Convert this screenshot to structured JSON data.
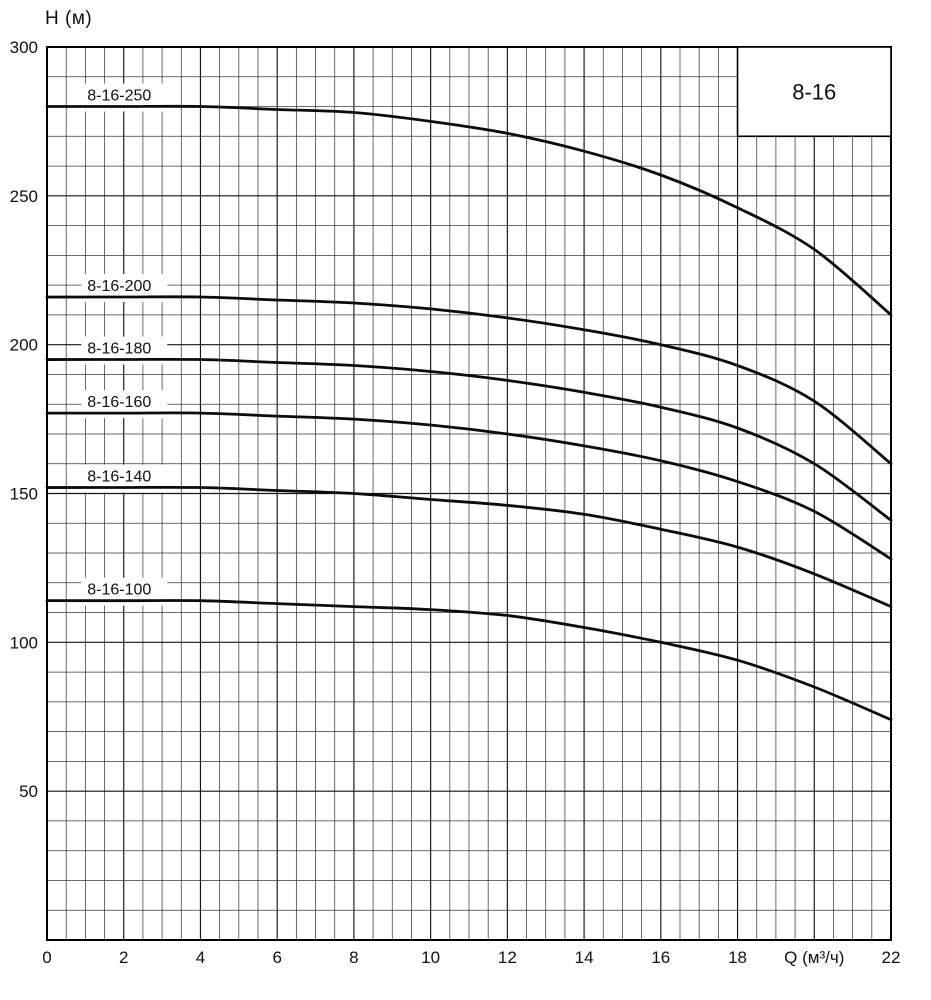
{
  "chart": {
    "y_axis_title": "H (м)",
    "x_axis_title": "Q (м³/ч)",
    "family_label": "8-16"
  },
  "chart_data": {
    "type": "line",
    "title": "8-16",
    "xlabel": "Q (м³/ч)",
    "ylabel": "H (м)",
    "xlim": [
      0,
      22
    ],
    "ylim": [
      0,
      300
    ],
    "x_minor_step": 0.5,
    "x_major_step": 2,
    "y_minor_step": 10,
    "y_major_step": 50,
    "grid": true,
    "legend_position": "top-right",
    "curve_color": "#0b0b0b",
    "x": [
      0,
      2,
      4,
      6,
      8,
      10,
      12,
      14,
      16,
      18,
      20,
      22
    ],
    "series": [
      {
        "name": "8-16-250",
        "values": [
          280,
          280,
          280,
          279,
          278,
          275,
          271,
          265,
          257,
          246,
          232,
          210
        ]
      },
      {
        "name": "8-16-200",
        "values": [
          216,
          216,
          216,
          215,
          214,
          212,
          209,
          205,
          200,
          193,
          181,
          160
        ]
      },
      {
        "name": "8-16-180",
        "values": [
          195,
          195,
          195,
          194,
          193,
          191,
          188,
          184,
          179,
          172,
          160,
          141
        ]
      },
      {
        "name": "8-16-160",
        "values": [
          177,
          177,
          177,
          176,
          175,
          173,
          170,
          166,
          161,
          154,
          144,
          128
        ]
      },
      {
        "name": "8-16-140",
        "values": [
          152,
          152,
          152,
          151,
          150,
          148,
          146,
          143,
          138,
          132,
          123,
          112
        ]
      },
      {
        "name": "8-16-100",
        "values": [
          114,
          114,
          114,
          113,
          112,
          111,
          109,
          105,
          100,
          94,
          85,
          74
        ]
      }
    ],
    "x_tick_labels": [
      "0",
      "2",
      "4",
      "6",
      "8",
      "10",
      "12",
      "14",
      "16",
      "18",
      "Q (м³/ч)",
      "22"
    ],
    "y_tick_labels": [
      "300",
      "250",
      "200",
      "150",
      "100",
      "50"
    ]
  }
}
